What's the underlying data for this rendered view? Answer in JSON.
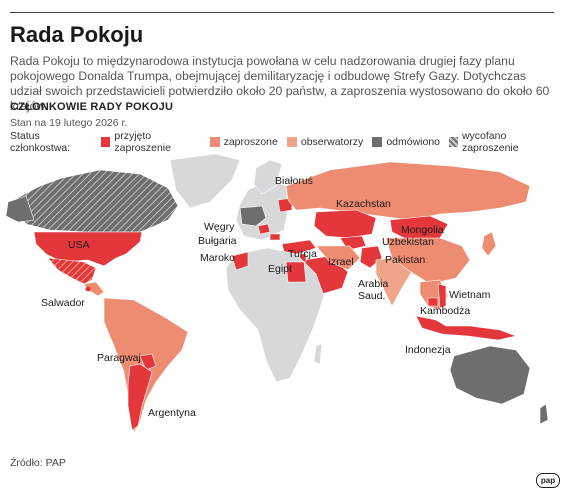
{
  "title": "Rada Pokoju",
  "description": "Rada Pokoju to międzynarodowa instytucja powołana w celu nadzorowania drugiej fazy planu pokojowego Donalda Trumpa, obejmującej demilitaryzację i odbudowę Strefy Gazy. Dotychczas udział swoich przedstawicieli potwierdziło około 20 państw, a zaproszenia wystosowano do około 60 krajów.",
  "subtitle": "CZŁONKOWIE RADY POKOJU",
  "date": "Stan na 19 lutego 2026 r.",
  "legend": {
    "title": "Status członkostwa:",
    "items": [
      {
        "label": "przyjęto zaproszenie",
        "color": "#e3373b",
        "pattern": "solid"
      },
      {
        "label": "zaproszone",
        "color": "#ee8c72",
        "pattern": "solid"
      },
      {
        "label": "obserwatorzy",
        "color": "#f2a48a",
        "pattern": "solid"
      },
      {
        "label": "odmówiono",
        "color": "#6e6e6e",
        "pattern": "solid"
      },
      {
        "label": "wycofano zaproszenie",
        "color": "#6e6e6e",
        "pattern": "hatched"
      }
    ]
  },
  "map_labels": {
    "bialorus": "Białoruś",
    "kazachstan": "Kazachstan",
    "wegry": "Węgry",
    "mongolia": "Mongolia",
    "bulgaria": "Bułgaria",
    "usa": "USA",
    "uzbekistan": "Uzbekistan",
    "maroko": "Maroko",
    "izrael": "Izrael",
    "pakistan": "Pakistan",
    "turcja": "Turcja",
    "egipt": "Egipt",
    "arabia": "Arabia",
    "saud": "Saud.",
    "salwador": "Salwador",
    "wietnam": "Wietnam",
    "kambodza": "Kambodża",
    "paragwaj": "Paragwaj",
    "indonezja": "Indonezja",
    "argentyna": "Argentyna"
  },
  "colors": {
    "land": "#d7d8da",
    "accepted": "#e3373b",
    "invited": "#ee8c72",
    "observer": "#f2a48a",
    "refused": "#6e6e6e"
  },
  "source": "Źródło: PAP",
  "logo": "pap"
}
